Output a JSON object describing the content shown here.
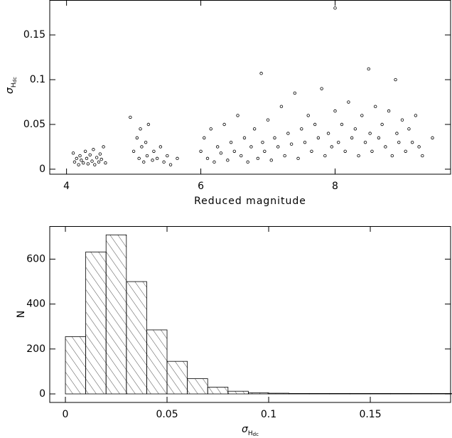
{
  "chart_data": [
    {
      "type": "scatter",
      "x": [
        4.1,
        4.12,
        4.15,
        4.18,
        4.2,
        4.22,
        4.25,
        4.28,
        4.3,
        4.32,
        4.35,
        4.38,
        4.4,
        4.42,
        4.45,
        4.48,
        4.5,
        4.52,
        4.55,
        4.58,
        4.95,
        5.0,
        5.05,
        5.08,
        5.1,
        5.12,
        5.15,
        5.18,
        5.2,
        5.22,
        5.28,
        5.3,
        5.35,
        5.4,
        5.45,
        5.5,
        5.55,
        5.65,
        6.0,
        6.05,
        6.1,
        6.15,
        6.2,
        6.25,
        6.3,
        6.35,
        6.4,
        6.45,
        6.5,
        6.55,
        6.6,
        6.65,
        6.7,
        6.75,
        6.8,
        6.85,
        6.9,
        6.92,
        6.95,
        7.0,
        7.05,
        7.1,
        7.15,
        7.2,
        7.25,
        7.3,
        7.35,
        7.4,
        7.45,
        7.5,
        7.55,
        7.6,
        7.65,
        7.7,
        7.75,
        7.8,
        7.85,
        7.9,
        7.95,
        8.0,
        8.0,
        8.05,
        8.1,
        8.15,
        8.2,
        8.25,
        8.3,
        8.35,
        8.4,
        8.45,
        8.5,
        8.52,
        8.55,
        8.6,
        8.65,
        8.7,
        8.75,
        8.8,
        8.85,
        8.9,
        8.92,
        8.95,
        9.0,
        9.05,
        9.1,
        9.15,
        9.2,
        9.25,
        9.3,
        9.45
      ],
      "values": [
        0.018,
        0.008,
        0.012,
        0.005,
        0.015,
        0.01,
        0.007,
        0.02,
        0.012,
        0.006,
        0.016,
        0.009,
        0.022,
        0.005,
        0.013,
        0.008,
        0.017,
        0.011,
        0.025,
        0.007,
        0.058,
        0.02,
        0.035,
        0.012,
        0.045,
        0.025,
        0.008,
        0.03,
        0.015,
        0.05,
        0.01,
        0.02,
        0.012,
        0.025,
        0.008,
        0.015,
        0.005,
        0.012,
        0.02,
        0.035,
        0.012,
        0.045,
        0.008,
        0.025,
        0.018,
        0.05,
        0.01,
        0.03,
        0.02,
        0.06,
        0.015,
        0.035,
        0.008,
        0.025,
        0.045,
        0.012,
        0.107,
        0.03,
        0.02,
        0.055,
        0.01,
        0.035,
        0.025,
        0.07,
        0.015,
        0.04,
        0.028,
        0.085,
        0.012,
        0.045,
        0.03,
        0.06,
        0.02,
        0.05,
        0.035,
        0.09,
        0.015,
        0.04,
        0.025,
        0.065,
        0.18,
        0.03,
        0.05,
        0.02,
        0.075,
        0.035,
        0.045,
        0.015,
        0.06,
        0.03,
        0.112,
        0.04,
        0.02,
        0.07,
        0.035,
        0.05,
        0.025,
        0.065,
        0.015,
        0.1,
        0.04,
        0.03,
        0.055,
        0.02,
        0.045,
        0.03,
        0.06,
        0.025,
        0.015,
        0.035
      ],
      "color": "#000000",
      "xlabel": "Reduced magnitude",
      "ylabel": {
        "symbol": "σ",
        "sub": "H",
        "subsub": "dc"
      },
      "xlim": [
        3.75,
        9.72
      ],
      "xticks": [
        4,
        6,
        8
      ],
      "ylim": [
        -0.0056,
        0.189
      ],
      "yticks": [
        0,
        0.05,
        0.1,
        0.15
      ]
    },
    {
      "type": "histogram",
      "bins": [
        0,
        0.01,
        0.02,
        0.03,
        0.04,
        0.05,
        0.06,
        0.07,
        0.08,
        0.09,
        0.1,
        0.11,
        0.12,
        0.13,
        0.14,
        0.15,
        0.16,
        0.17,
        0.18,
        0.19
      ],
      "values": [
        255,
        632,
        708,
        500,
        285,
        145,
        68,
        30,
        12,
        5,
        3,
        2,
        2,
        2,
        2,
        2,
        2,
        2,
        2
      ],
      "color": "#000000",
      "xlabel": {
        "symbol": "σ",
        "sub": "H",
        "subsub": "dc"
      },
      "ylabel": "N",
      "xlim": [
        -0.0077,
        0.1895
      ],
      "xticks": [
        0,
        0.05,
        0.1,
        0.15
      ],
      "ylim": [
        -38,
        747
      ],
      "yticks": [
        0,
        200,
        400,
        600
      ]
    }
  ]
}
